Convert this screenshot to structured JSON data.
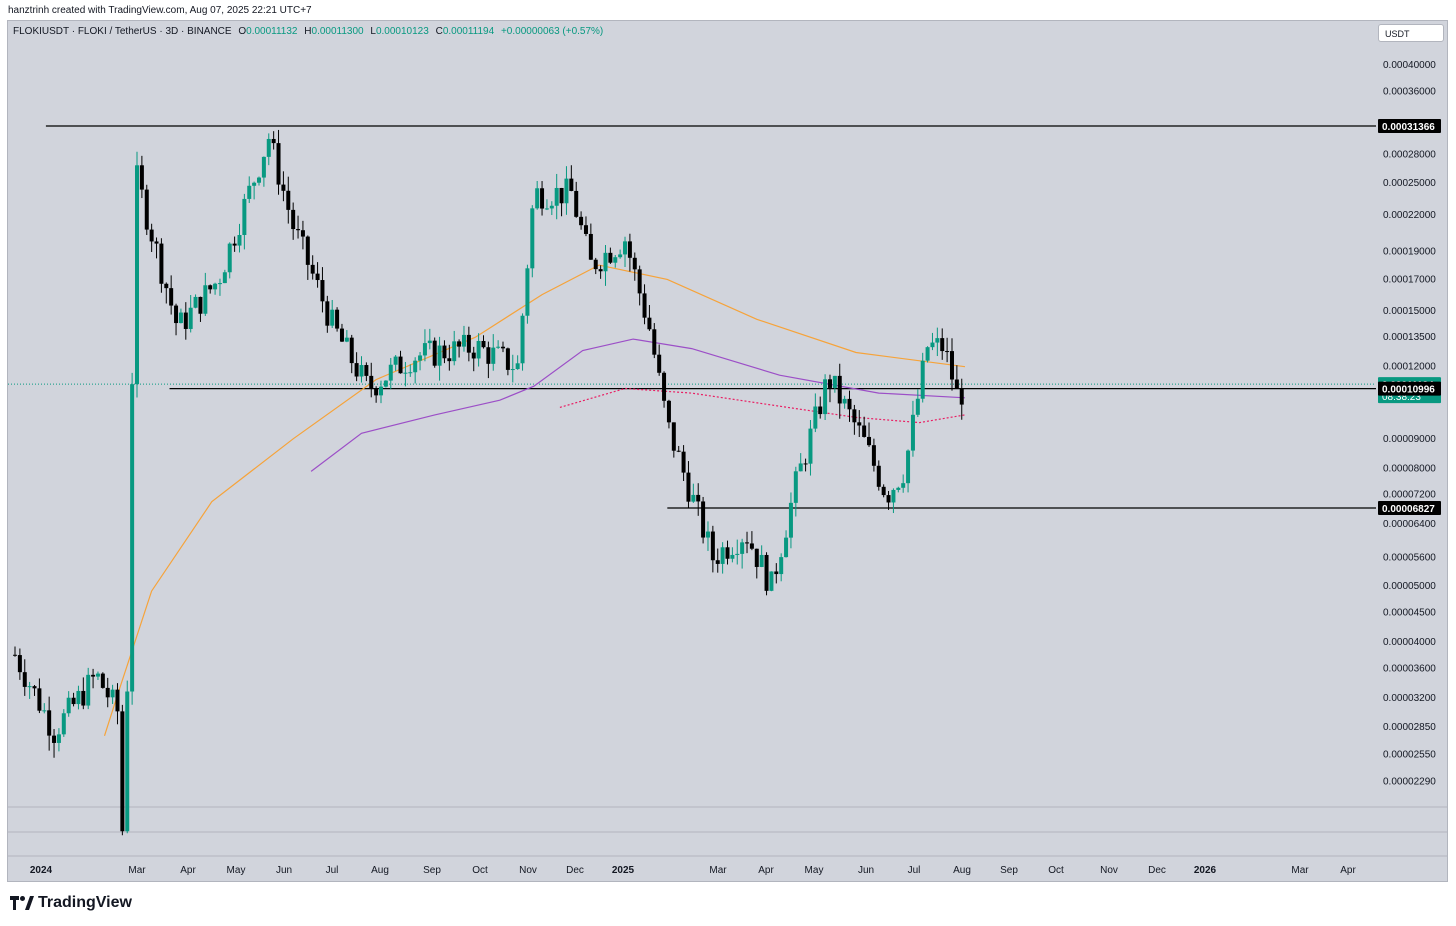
{
  "header": {
    "attribution": "hanztrinh created with TradingView.com, Aug 07, 2025 22:21 UTC+7"
  },
  "legend": {
    "symbol": "FLOKIUSDT · FLOKI / TetherUS · 3D · BINANCE",
    "o_label": "O",
    "o": "0.00011132",
    "h_label": "H",
    "h": "0.00011300",
    "l_label": "L",
    "l": "0.00010123",
    "c_label": "C",
    "c": "0.00011194",
    "change": "+0.00000063 (+0.57%)"
  },
  "currency_button": "USDT",
  "brand": "TradingView",
  "colors": {
    "up": "#089981",
    "down": "#000000",
    "ma_orange": "#f6a33a",
    "ma_purple": "#9c4fc7",
    "dotted": "#e91e63",
    "background": "#d1d4dc"
  },
  "chart_data": {
    "type": "candlestick",
    "y_scale": "log",
    "ylim": [
      2.08e-05,
      4.2e-05
    ],
    "y_ticks": [
      "0.00040000",
      "0.00036000",
      "0.00031366",
      "0.00028000",
      "0.00025000",
      "0.00022000",
      "0.00019000",
      "0.00017000",
      "0.00015000",
      "0.00013500",
      "0.00012000",
      "0.00009000",
      "0.00008000",
      "0.00007200",
      "0.00006827",
      "0.00006400",
      "0.00005600",
      "0.00005000",
      "0.00004500",
      "0.00004000",
      "0.00003600",
      "0.00003200",
      "0.00002850",
      "0.00002550",
      "0.00002290"
    ],
    "x_ticks": [
      {
        "label": "2024",
        "bold": true
      },
      {
        "label": "Mar"
      },
      {
        "label": "Apr"
      },
      {
        "label": "May"
      },
      {
        "label": "Jun"
      },
      {
        "label": "Jul"
      },
      {
        "label": "Aug"
      },
      {
        "label": "Sep"
      },
      {
        "label": "Oct"
      },
      {
        "label": "Nov"
      },
      {
        "label": "Dec"
      },
      {
        "label": "2025",
        "bold": true
      },
      {
        "label": "Mar"
      },
      {
        "label": "Apr"
      },
      {
        "label": "May"
      },
      {
        "label": "Jun"
      },
      {
        "label": "Jul"
      },
      {
        "label": "Aug"
      },
      {
        "label": "Sep"
      },
      {
        "label": "Oct"
      },
      {
        "label": "Nov"
      },
      {
        "label": "Dec"
      },
      {
        "label": "2026",
        "bold": true
      },
      {
        "label": "Mar"
      },
      {
        "label": "Apr"
      }
    ],
    "price_badges": [
      {
        "value": "0.00031366",
        "style": "black"
      },
      {
        "value": "0.00011194",
        "time": "08:38:23",
        "style": "green"
      },
      {
        "value": "0.00010996",
        "style": "black"
      },
      {
        "value": "0.00006827",
        "style": "black"
      }
    ],
    "horizontal_levels": [
      {
        "value": 0.00031366,
        "from": "2024-01-20"
      },
      {
        "value": 0.00010996,
        "from": "2024-04-05"
      },
      {
        "value": 6.827e-05,
        "from": "2025-02-05"
      }
    ],
    "key_prices": [
      {
        "date": "2024-01-01",
        "close": 3.8e-05
      },
      {
        "date": "2024-01-25",
        "close": 2.8e-05
      },
      {
        "date": "2024-02-20",
        "close": 3.5e-05
      },
      {
        "date": "2024-03-05",
        "close": 3e-05
      },
      {
        "date": "2024-03-08",
        "close": 1.5e-05
      },
      {
        "date": "2024-03-15",
        "close": 0.00026
      },
      {
        "date": "2024-03-22",
        "close": 0.00022
      },
      {
        "date": "2024-04-10",
        "close": 0.00014
      },
      {
        "date": "2024-05-05",
        "close": 0.00017
      },
      {
        "date": "2024-06-05",
        "close": 0.0003
      },
      {
        "date": "2024-06-20",
        "close": 0.00021
      },
      {
        "date": "2024-07-15",
        "close": 0.00014
      },
      {
        "date": "2024-08-05",
        "close": 0.00011
      },
      {
        "date": "2024-09-01",
        "close": 0.000125
      },
      {
        "date": "2024-10-10",
        "close": 0.00013
      },
      {
        "date": "2024-11-05",
        "close": 0.00012
      },
      {
        "date": "2024-11-15",
        "close": 0.00024
      },
      {
        "date": "2024-12-08",
        "close": 0.00024
      },
      {
        "date": "2024-12-20",
        "close": 0.00018
      },
      {
        "date": "2025-01-10",
        "close": 0.0002
      },
      {
        "date": "2025-01-25",
        "close": 0.00014
      },
      {
        "date": "2025-02-05",
        "close": 9.5e-05
      },
      {
        "date": "2025-03-05",
        "close": 5.6e-05
      },
      {
        "date": "2025-03-25",
        "close": 6.2e-05
      },
      {
        "date": "2025-04-10",
        "close": 5e-05
      },
      {
        "date": "2025-04-25",
        "close": 7.5e-05
      },
      {
        "date": "2025-05-15",
        "close": 0.000115
      },
      {
        "date": "2025-06-05",
        "close": 9e-05
      },
      {
        "date": "2025-06-20",
        "close": 7.2e-05
      },
      {
        "date": "2025-07-01",
        "close": 8e-05
      },
      {
        "date": "2025-07-15",
        "close": 0.00013
      },
      {
        "date": "2025-07-25",
        "close": 0.00013
      },
      {
        "date": "2025-08-03",
        "close": 0.000105
      },
      {
        "date": "2025-08-07",
        "close": 0.00011194
      }
    ],
    "ma_orange": [
      {
        "date": "2024-02-25",
        "value": 2.75e-05
      },
      {
        "date": "2024-03-05",
        "value": 3.3e-05
      },
      {
        "date": "2024-03-25",
        "value": 4.9e-05
      },
      {
        "date": "2024-05-01",
        "value": 7e-05
      },
      {
        "date": "2024-06-20",
        "value": 9e-05
      },
      {
        "date": "2024-08-10",
        "value": 0.000114
      },
      {
        "date": "2024-10-10",
        "value": 0.000135
      },
      {
        "date": "2024-11-20",
        "value": 0.00016
      },
      {
        "date": "2024-12-25",
        "value": 0.00018
      },
      {
        "date": "2025-02-05",
        "value": 0.00017
      },
      {
        "date": "2025-04-01",
        "value": 0.000145
      },
      {
        "date": "2025-06-01",
        "value": 0.000127
      },
      {
        "date": "2025-08-07",
        "value": 0.00012
      }
    ],
    "ma_purple": [
      {
        "date": "2024-07-01",
        "value": 7.9e-05
      },
      {
        "date": "2024-08-01",
        "value": 9.2e-05
      },
      {
        "date": "2024-09-15",
        "value": 9.9e-05
      },
      {
        "date": "2024-10-25",
        "value": 0.000105
      },
      {
        "date": "2024-11-15",
        "value": 0.000111
      },
      {
        "date": "2024-12-15",
        "value": 0.000128
      },
      {
        "date": "2025-01-15",
        "value": 0.000134
      },
      {
        "date": "2025-02-20",
        "value": 0.000129
      },
      {
        "date": "2025-04-15",
        "value": 0.000116
      },
      {
        "date": "2025-06-15",
        "value": 0.000108
      },
      {
        "date": "2025-08-07",
        "value": 0.000106
      }
    ],
    "dotted": [
      {
        "date": "2024-12-01",
        "value": 0.000102
      },
      {
        "date": "2025-01-10",
        "value": 0.00011
      },
      {
        "date": "2025-02-20",
        "value": 0.000108
      },
      {
        "date": "2025-04-20",
        "value": 0.000102
      },
      {
        "date": "2025-06-01",
        "value": 9.8e-05
      },
      {
        "date": "2025-07-10",
        "value": 9.6e-05
      },
      {
        "date": "2025-08-07",
        "value": 9.9e-05
      }
    ]
  }
}
